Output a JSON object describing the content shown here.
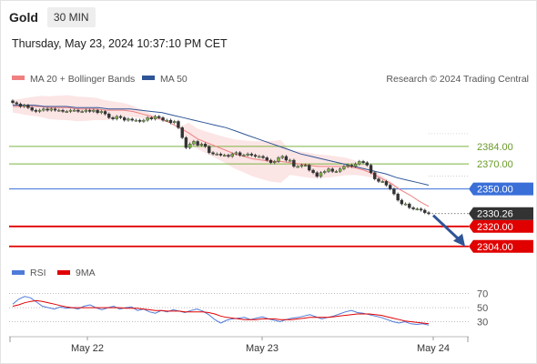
{
  "header": {
    "symbol": "Gold",
    "timeframe": "30 MIN",
    "timestamp": "Thursday, May 23, 2024 10:37:10 PM CET"
  },
  "chart_data": [
    {
      "type": "candlestick",
      "legend": [
        {
          "name": "MA 20 + Bollinger Bands",
          "color": "#f08080"
        },
        {
          "name": "MA 50",
          "color": "#2f5597"
        }
      ],
      "watermark": "Research © 2024 Trading Central",
      "x_labels": [
        "May 22",
        "May 23",
        "May 24"
      ],
      "ylim": [
        2290,
        2432
      ],
      "last_price": {
        "label": "2330.26",
        "value": 2330.26
      },
      "levels": [
        {
          "label": "2384.00",
          "value": 2384,
          "kind": "resistance",
          "color": "#7cb342"
        },
        {
          "label": "2370.00",
          "value": 2370,
          "kind": "resistance",
          "color": "#7cb342"
        },
        {
          "label": "2350.00",
          "value": 2350,
          "kind": "pivot",
          "color": "#3a6fd8"
        },
        {
          "label": "2320.00",
          "value": 2320,
          "kind": "support",
          "color": "#e00000"
        },
        {
          "label": "2304.00",
          "value": 2304,
          "kind": "support",
          "color": "#e00000"
        }
      ],
      "close_path": [
        2419,
        2418,
        2416,
        2417,
        2415,
        2413,
        2412,
        2413,
        2414,
        2413,
        2414,
        2413,
        2413,
        2412,
        2412,
        2413,
        2413,
        2412,
        2412,
        2413,
        2412,
        2413,
        2411,
        2412,
        2410,
        2407,
        2406,
        2408,
        2407,
        2405,
        2406,
        2405,
        2405,
        2404,
        2405,
        2407,
        2406,
        2408,
        2407,
        2405,
        2405,
        2403,
        2404,
        2399,
        2391,
        2383,
        2386,
        2388,
        2385,
        2386,
        2384,
        2379,
        2378,
        2378,
        2377,
        2377,
        2376,
        2378,
        2379,
        2377,
        2377,
        2378,
        2377,
        2376,
        2376,
        2375,
        2373,
        2371,
        2372,
        2375,
        2376,
        2373,
        2373,
        2368,
        2368,
        2369,
        2369,
        2365,
        2363,
        2360,
        2363,
        2364,
        2366,
        2364,
        2364,
        2366,
        2368,
        2369,
        2368,
        2370,
        2372,
        2371,
        2369,
        2363,
        2358,
        2356,
        2356,
        2353,
        2350,
        2346,
        2341,
        2338,
        2338,
        2335,
        2334,
        2334,
        2333,
        2331,
        2330.26
      ],
      "ma20": [
        2416,
        2416,
        2416,
        2416,
        2415,
        2415,
        2415,
        2414,
        2414,
        2414,
        2413,
        2413,
        2413,
        2412,
        2410,
        2408,
        2406,
        2403,
        2399,
        2395,
        2390,
        2387,
        2384,
        2381,
        2378,
        2376,
        2374,
        2373,
        2372,
        2372,
        2371,
        2370,
        2369,
        2368,
        2368,
        2368,
        2368,
        2367,
        2365,
        2362,
        2358,
        2354,
        2349,
        2345,
        2340,
        2336
      ],
      "ma50": [
        2417,
        2417,
        2417,
        2416,
        2416,
        2416,
        2415,
        2415,
        2415,
        2414,
        2414,
        2414,
        2413,
        2412,
        2411,
        2409,
        2407,
        2405,
        2403,
        2401,
        2399,
        2396,
        2393,
        2390,
        2387,
        2384,
        2381,
        2378,
        2376,
        2374,
        2372,
        2370,
        2368,
        2366,
        2364,
        2362,
        2359,
        2357,
        2355,
        2353
      ],
      "rsi_panel": {
        "legend": [
          {
            "name": "RSI",
            "color": "#4f7bd8"
          },
          {
            "name": "9MA",
            "color": "#e00000"
          }
        ],
        "levels": [
          "70",
          "50",
          "30"
        ],
        "ylim": [
          15,
          80
        ],
        "rsi": [
          55,
          62,
          66,
          64,
          58,
          52,
          50,
          48,
          51,
          49,
          50,
          48,
          52,
          54,
          50,
          47,
          50,
          52,
          48,
          50,
          51,
          46,
          48,
          44,
          42,
          46,
          44,
          47,
          45,
          43,
          46,
          48,
          45,
          40,
          33,
          28,
          32,
          34,
          35,
          36,
          33,
          35,
          37,
          34,
          32,
          30,
          33,
          35,
          36,
          38,
          40,
          37,
          34,
          36,
          38,
          41,
          44,
          46,
          43,
          42,
          40,
          38,
          36,
          33,
          30,
          28,
          30,
          27,
          26,
          27,
          25
        ],
        "ma9": [
          52,
          54,
          57,
          59,
          60,
          59,
          57,
          55,
          53,
          51,
          50,
          50,
          50,
          50,
          50,
          50,
          50,
          50,
          50,
          49,
          49,
          49,
          48,
          47,
          46,
          46,
          45,
          45,
          45,
          44,
          44,
          44,
          44,
          43,
          41,
          38,
          36,
          35,
          34,
          33,
          33,
          33,
          34,
          34,
          34,
          33,
          33,
          33,
          34,
          35,
          36,
          36,
          36,
          36,
          37,
          38,
          39,
          40,
          41,
          41,
          41,
          40,
          39,
          37,
          35,
          33,
          31,
          30,
          29,
          28,
          27
        ]
      }
    }
  ]
}
